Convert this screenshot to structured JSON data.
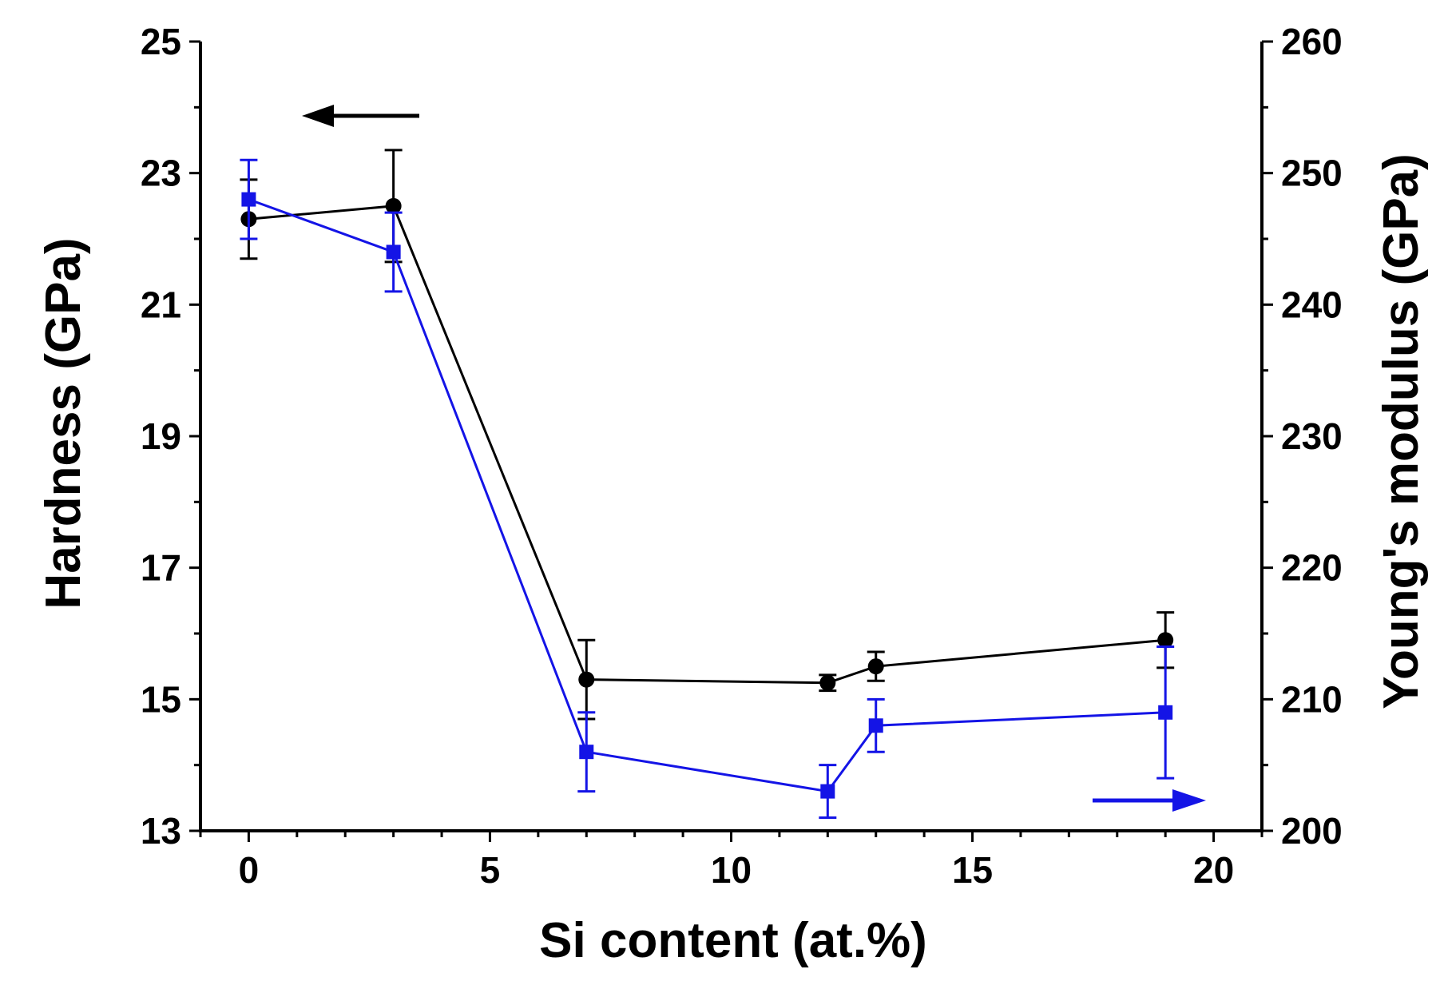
{
  "chart_data": {
    "type": "line",
    "xlabel": "Si content (at.%)",
    "ylabel_left": "Hardness (GPa)",
    "ylabel_right": "Young's modulus (GPa)",
    "xlim": [
      -1,
      21
    ],
    "ylim_left": [
      13,
      25
    ],
    "ylim_right": [
      200,
      260
    ],
    "x_ticks": [
      "0",
      "5",
      "10",
      "15",
      "20"
    ],
    "y_left_ticks": [
      "13",
      "15",
      "17",
      "19",
      "21",
      "23",
      "25"
    ],
    "y_right_ticks": [
      "200",
      "210",
      "220",
      "230",
      "240",
      "250",
      "260"
    ],
    "series": [
      {
        "name": "Hardness",
        "axis": "left",
        "color": "#000000",
        "marker": "circle",
        "x": [
          0,
          3,
          7,
          12,
          13,
          19
        ],
        "y": [
          22.3,
          22.5,
          15.3,
          15.25,
          15.5,
          15.9
        ],
        "err": [
          0.6,
          0.85,
          0.6,
          0.12,
          0.22,
          0.42
        ]
      },
      {
        "name": "Young's modulus",
        "axis": "right",
        "color": "#1414e6",
        "marker": "square",
        "x": [
          0,
          3,
          7,
          12,
          13,
          19
        ],
        "y": [
          248,
          244,
          206,
          203,
          208,
          209
        ],
        "err": [
          3,
          3,
          3,
          2,
          2,
          5
        ]
      }
    ],
    "annotations": [
      {
        "type": "arrow",
        "direction": "left",
        "meaning": "hardness-axis",
        "color": "#000000"
      },
      {
        "type": "arrow",
        "direction": "right",
        "meaning": "modulus-axis",
        "color": "#1414e6"
      }
    ]
  }
}
